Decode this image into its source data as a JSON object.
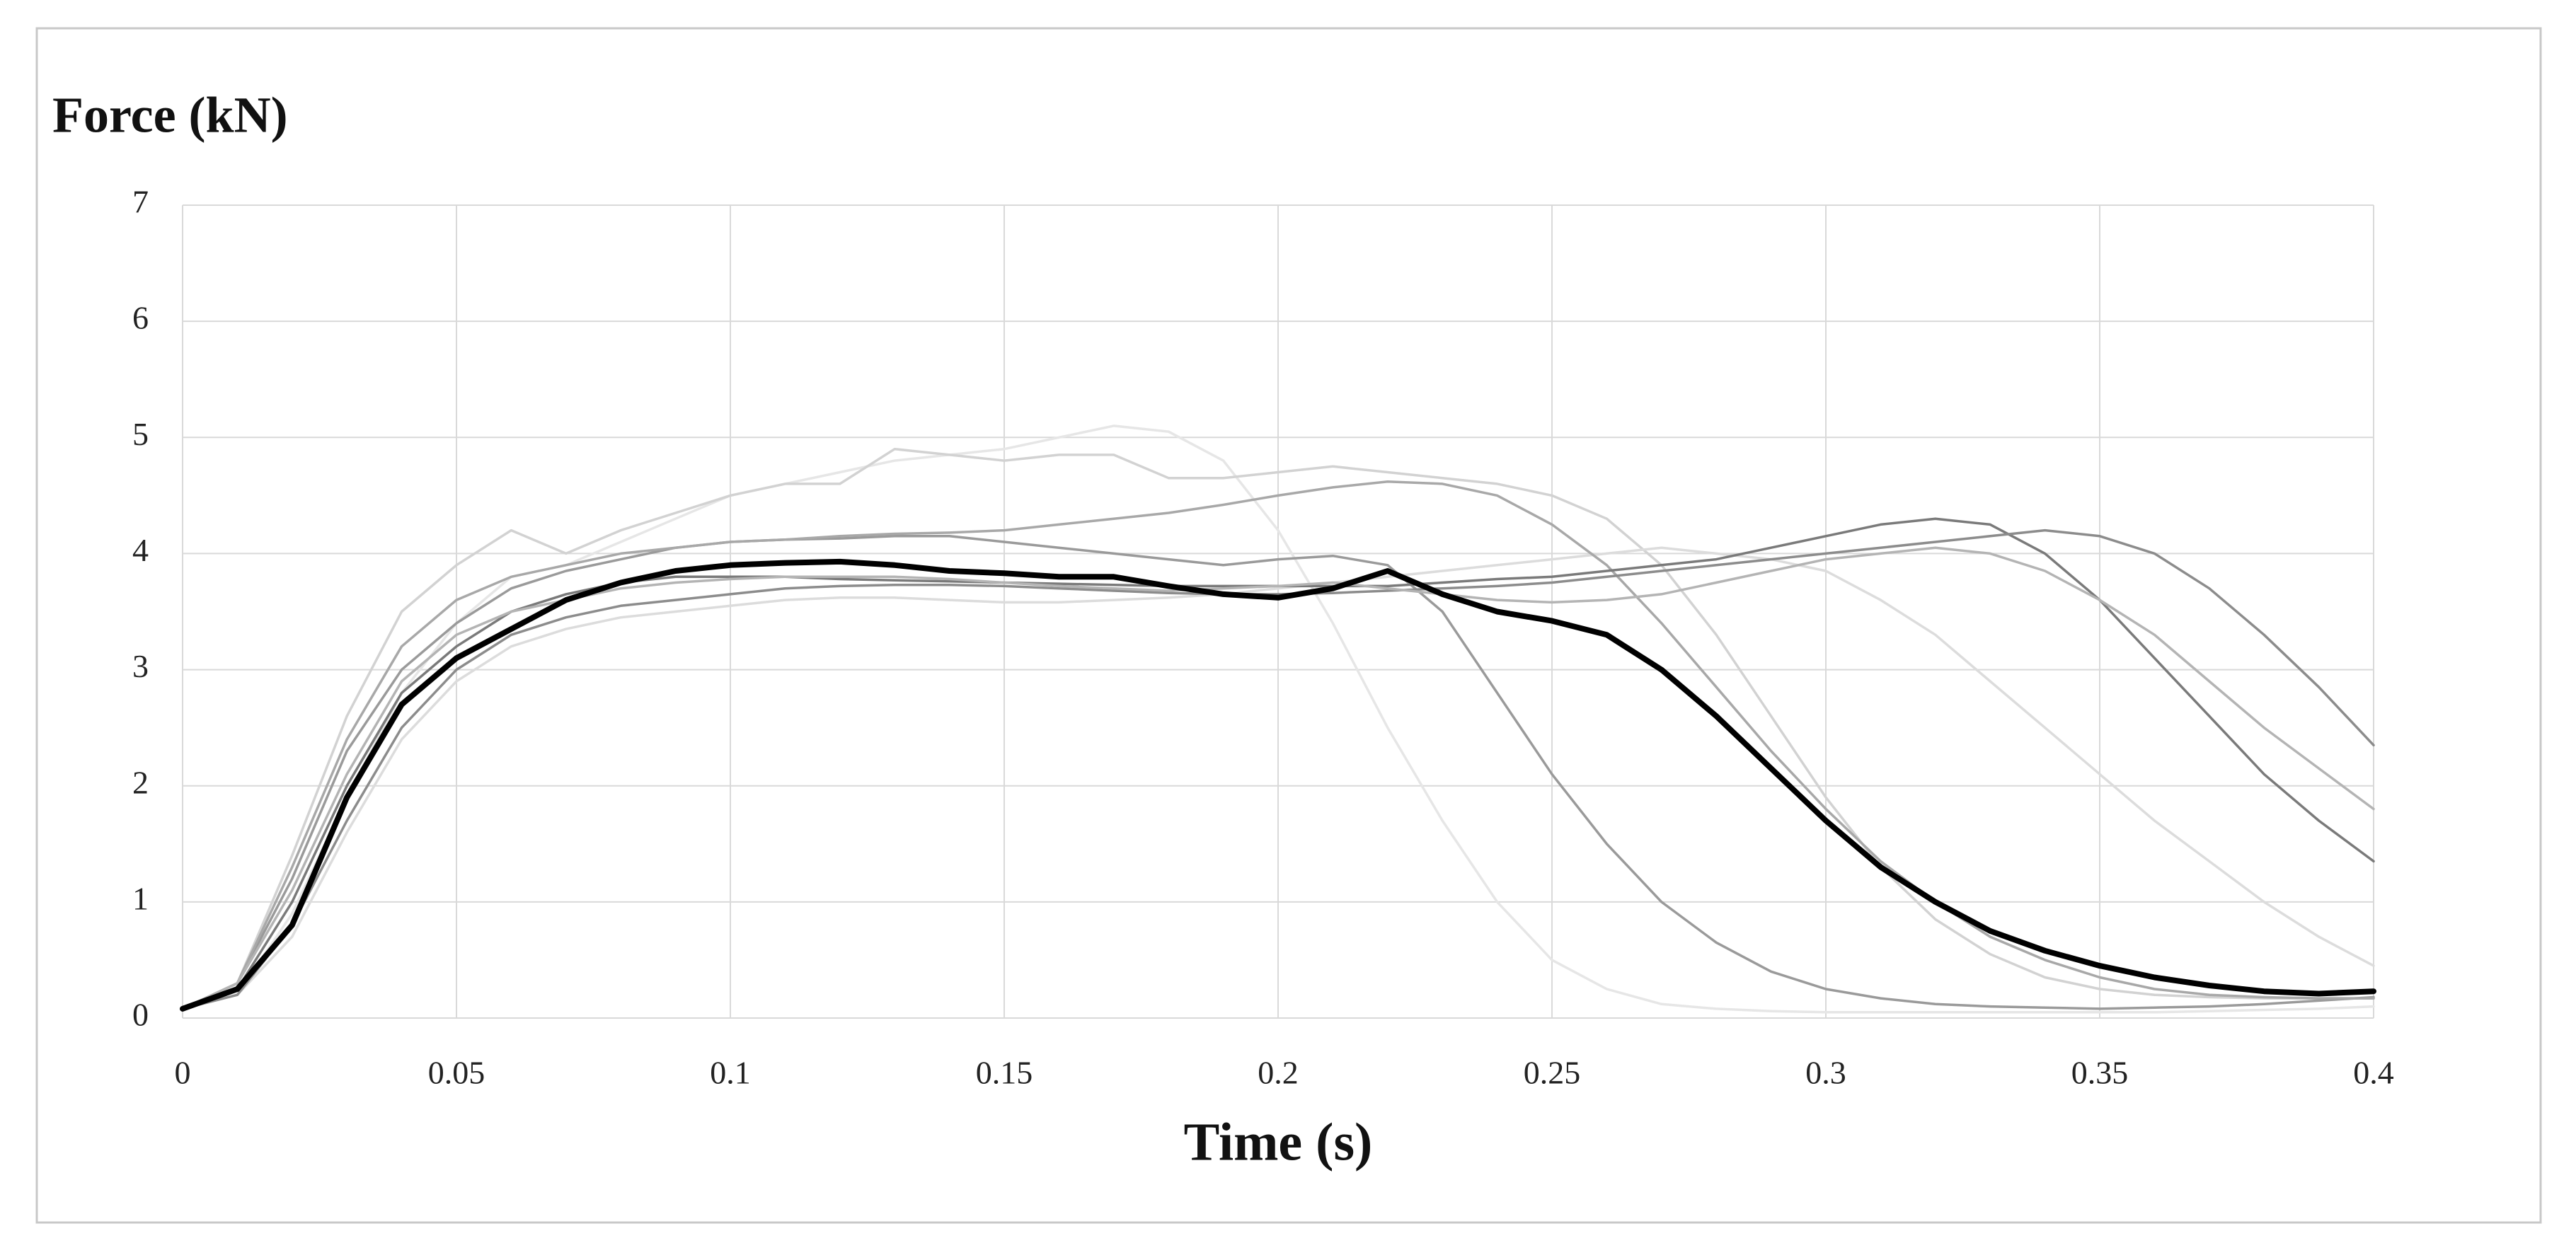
{
  "chart_data": {
    "type": "line",
    "y_axis_title": "Force (kN)",
    "x_axis_title": "Time (s)",
    "x": [
      0,
      0.01,
      0.02,
      0.03,
      0.04,
      0.05,
      0.06,
      0.07,
      0.08,
      0.09,
      0.1,
      0.11,
      0.12,
      0.13,
      0.14,
      0.15,
      0.16,
      0.17,
      0.18,
      0.19,
      0.2,
      0.21,
      0.22,
      0.23,
      0.24,
      0.25,
      0.26,
      0.27,
      0.28,
      0.29,
      0.3,
      0.31,
      0.32,
      0.33,
      0.34,
      0.35,
      0.36,
      0.37,
      0.38,
      0.39,
      0.4
    ],
    "xlim": [
      0,
      0.4
    ],
    "xticks": [
      0,
      0.05,
      0.1,
      0.15,
      0.2,
      0.25,
      0.3,
      0.35,
      0.4
    ],
    "ylim": [
      0,
      7
    ],
    "yticks": [
      0,
      1,
      2,
      3,
      4,
      5,
      6,
      7
    ],
    "grid": true,
    "series": [
      {
        "color": "#e6e6e6",
        "values": [
          0.08,
          0.2,
          0.9,
          1.9,
          2.8,
          3.4,
          3.8,
          3.9,
          4.1,
          4.3,
          4.5,
          4.6,
          4.7,
          4.8,
          4.85,
          4.9,
          5.0,
          5.1,
          5.05,
          4.8,
          4.2,
          3.4,
          2.5,
          1.7,
          1.0,
          0.5,
          0.25,
          0.12,
          0.08,
          0.06,
          0.05,
          0.05,
          0.05,
          0.05,
          0.05,
          0.05,
          0.05,
          0.06,
          0.07,
          0.08,
          0.1
        ]
      },
      {
        "color": "#d2d2d2",
        "values": [
          0.08,
          0.3,
          1.4,
          2.6,
          3.5,
          3.9,
          4.2,
          4.0,
          4.2,
          4.35,
          4.5,
          4.6,
          4.6,
          4.9,
          4.85,
          4.8,
          4.85,
          4.85,
          4.65,
          4.65,
          4.7,
          4.75,
          4.7,
          4.65,
          4.6,
          4.5,
          4.3,
          3.9,
          3.3,
          2.6,
          1.9,
          1.3,
          0.85,
          0.55,
          0.35,
          0.25,
          0.2,
          0.18,
          0.17,
          0.17,
          0.17
        ]
      },
      {
        "color": "#dcdcdc",
        "values": [
          0.08,
          0.2,
          0.7,
          1.6,
          2.4,
          2.9,
          3.2,
          3.35,
          3.45,
          3.5,
          3.55,
          3.6,
          3.62,
          3.62,
          3.6,
          3.58,
          3.58,
          3.6,
          3.62,
          3.65,
          3.7,
          3.75,
          3.8,
          3.85,
          3.9,
          3.95,
          4.0,
          4.05,
          4.0,
          3.95,
          3.85,
          3.6,
          3.3,
          2.9,
          2.5,
          2.1,
          1.7,
          1.35,
          1.0,
          0.7,
          0.45
        ]
      },
      {
        "color": "#9a9a9a",
        "values": [
          0.08,
          0.3,
          1.2,
          2.3,
          3.0,
          3.4,
          3.7,
          3.85,
          3.95,
          4.05,
          4.1,
          4.12,
          4.13,
          4.15,
          4.15,
          4.1,
          4.05,
          4.0,
          3.95,
          3.9,
          3.95,
          3.98,
          3.9,
          3.5,
          2.8,
          2.1,
          1.5,
          1.0,
          0.65,
          0.4,
          0.25,
          0.17,
          0.12,
          0.1,
          0.09,
          0.08,
          0.09,
          0.1,
          0.12,
          0.15,
          0.18
        ]
      },
      {
        "color": "#a8a8a8",
        "values": [
          0.08,
          0.3,
          1.3,
          2.4,
          3.2,
          3.6,
          3.8,
          3.9,
          4.0,
          4.05,
          4.1,
          4.12,
          4.15,
          4.17,
          4.18,
          4.2,
          4.25,
          4.3,
          4.35,
          4.42,
          4.5,
          4.57,
          4.62,
          4.6,
          4.5,
          4.25,
          3.9,
          3.4,
          2.85,
          2.3,
          1.8,
          1.35,
          1.0,
          0.7,
          0.5,
          0.35,
          0.25,
          0.2,
          0.18,
          0.17,
          0.17
        ]
      },
      {
        "color": "#7a7a7a",
        "values": [
          0.08,
          0.25,
          1.0,
          2.0,
          2.8,
          3.2,
          3.5,
          3.65,
          3.75,
          3.8,
          3.8,
          3.8,
          3.78,
          3.77,
          3.76,
          3.75,
          3.74,
          3.73,
          3.72,
          3.72,
          3.72,
          3.72,
          3.72,
          3.75,
          3.78,
          3.8,
          3.85,
          3.9,
          3.95,
          4.05,
          4.15,
          4.25,
          4.3,
          4.25,
          4.0,
          3.6,
          3.1,
          2.6,
          2.1,
          1.7,
          1.35
        ]
      },
      {
        "color": "#8c8c8c",
        "values": [
          0.08,
          0.2,
          0.8,
          1.7,
          2.5,
          3.0,
          3.3,
          3.45,
          3.55,
          3.6,
          3.65,
          3.7,
          3.72,
          3.73,
          3.73,
          3.72,
          3.7,
          3.68,
          3.66,
          3.65,
          3.65,
          3.66,
          3.68,
          3.7,
          3.72,
          3.75,
          3.8,
          3.85,
          3.9,
          3.95,
          4.0,
          4.05,
          4.1,
          4.15,
          4.2,
          4.15,
          4.0,
          3.7,
          3.3,
          2.85,
          2.35
        ]
      },
      {
        "color": "#b4b4b4",
        "values": [
          0.08,
          0.3,
          1.1,
          2.1,
          2.9,
          3.3,
          3.5,
          3.6,
          3.7,
          3.75,
          3.78,
          3.8,
          3.8,
          3.8,
          3.78,
          3.75,
          3.72,
          3.7,
          3.68,
          3.7,
          3.72,
          3.75,
          3.7,
          3.65,
          3.6,
          3.58,
          3.6,
          3.65,
          3.75,
          3.85,
          3.95,
          4.0,
          4.05,
          4.0,
          3.85,
          3.6,
          3.3,
          2.9,
          2.5,
          2.15,
          1.8
        ]
      },
      {
        "color": "#000000",
        "values": [
          0.08,
          0.25,
          0.8,
          1.9,
          2.7,
          3.1,
          3.35,
          3.6,
          3.75,
          3.85,
          3.9,
          3.92,
          3.93,
          3.9,
          3.85,
          3.83,
          3.8,
          3.8,
          3.72,
          3.65,
          3.62,
          3.7,
          3.85,
          3.65,
          3.5,
          3.42,
          3.3,
          3.0,
          2.6,
          2.15,
          1.7,
          1.3,
          1.0,
          0.75,
          0.58,
          0.45,
          0.35,
          0.28,
          0.23,
          0.21,
          0.23
        ]
      }
    ]
  }
}
